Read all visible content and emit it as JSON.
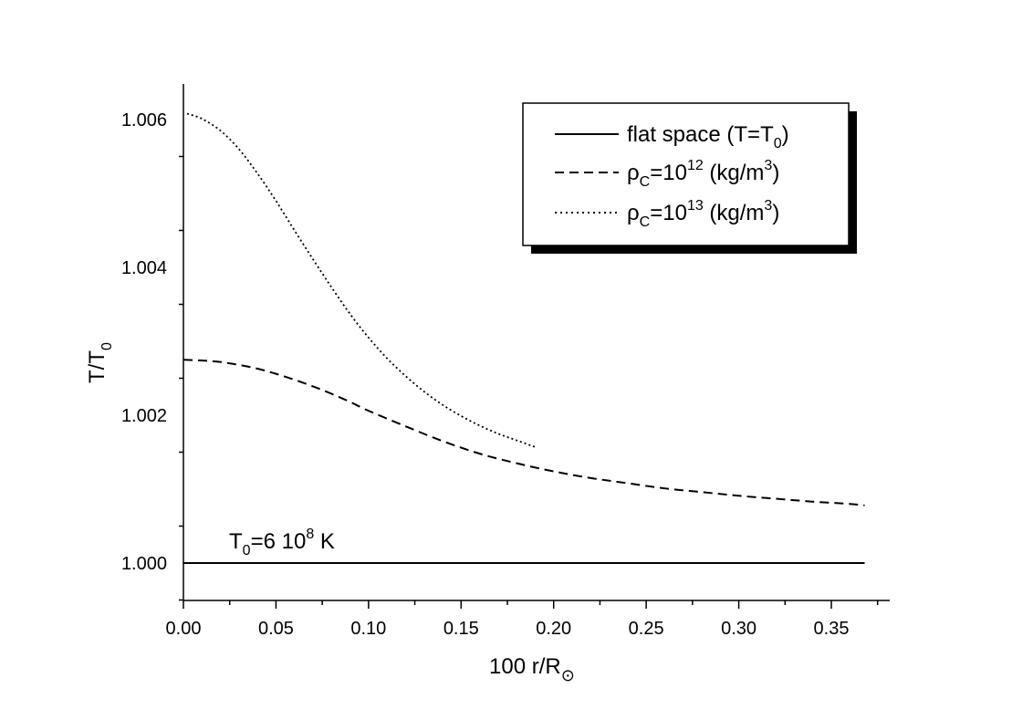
{
  "chart_data": {
    "type": "line",
    "title": "",
    "xlabel": {
      "main": "100 r/R",
      "sub": "⊙"
    },
    "ylabel": {
      "main": "T/T",
      "sub": "0"
    },
    "xlim": [
      0,
      0.38
    ],
    "ylim": [
      0.9995,
      1.0065
    ],
    "x_ticks": [
      0.0,
      0.05,
      0.1,
      0.15,
      0.2,
      0.25,
      0.3,
      0.35
    ],
    "x_tick_labels": [
      "0.00",
      "0.05",
      "0.10",
      "0.15",
      "0.20",
      "0.25",
      "0.30",
      "0.35"
    ],
    "y_ticks": [
      1.0,
      1.002,
      1.004,
      1.006
    ],
    "y_tick_labels": [
      "1.000",
      "1.002",
      "1.004",
      "1.006"
    ],
    "grid": false,
    "legend_position": "top-right",
    "annotation": {
      "t": "T",
      "sub": "0",
      "mid": "=6 10",
      "sup": "8",
      "end": " K"
    },
    "series": [
      {
        "legend": {
          "text": "flat space (T=T",
          "sub": "0",
          "end": ")"
        },
        "style": "solid",
        "x": [
          0.0,
          0.05,
          0.1,
          0.15,
          0.2,
          0.25,
          0.3,
          0.368
        ],
        "y": [
          1.0,
          1.0,
          1.0,
          1.0,
          1.0,
          1.0,
          1.0,
          1.0
        ]
      },
      {
        "legend": {
          "rho": "ρ",
          "sub": "C",
          "eq": "=10",
          "sup": "12",
          "unit": " (kg/m",
          "unit_sup": "3",
          "end": ")"
        },
        "style": "dashed",
        "x": [
          0.0,
          0.01,
          0.02,
          0.03,
          0.04,
          0.05,
          0.06,
          0.07,
          0.08,
          0.09,
          0.1,
          0.12,
          0.14,
          0.16,
          0.18,
          0.2,
          0.22,
          0.24,
          0.26,
          0.28,
          0.3,
          0.32,
          0.34,
          0.36,
          0.368
        ],
        "y": [
          1.00275,
          1.00274,
          1.00272,
          1.00268,
          1.00263,
          1.00256,
          1.00248,
          1.00239,
          1.00229,
          1.00218,
          1.00206,
          1.00185,
          1.00165,
          1.00148,
          1.00135,
          1.00124,
          1.00115,
          1.00108,
          1.00101,
          1.00096,
          1.00091,
          1.00087,
          1.00083,
          1.0008,
          1.00078
        ]
      },
      {
        "legend": {
          "rho": "ρ",
          "sub": "C",
          "eq": "=10",
          "sup": "13",
          "unit": " (kg/m",
          "unit_sup": "3",
          "end": ")"
        },
        "style": "dotted",
        "x": [
          0.002,
          0.01,
          0.02,
          0.03,
          0.04,
          0.05,
          0.06,
          0.07,
          0.08,
          0.09,
          0.1,
          0.11,
          0.12,
          0.13,
          0.14,
          0.15,
          0.16,
          0.17,
          0.18,
          0.19
        ],
        "y": [
          1.00608,
          1.00601,
          1.00585,
          1.0056,
          1.00527,
          1.0049,
          1.0045,
          1.00411,
          1.00373,
          1.00337,
          1.00305,
          1.00277,
          1.00253,
          1.00232,
          1.00214,
          1.00199,
          1.00186,
          1.00175,
          1.00166,
          1.00157
        ]
      }
    ]
  }
}
